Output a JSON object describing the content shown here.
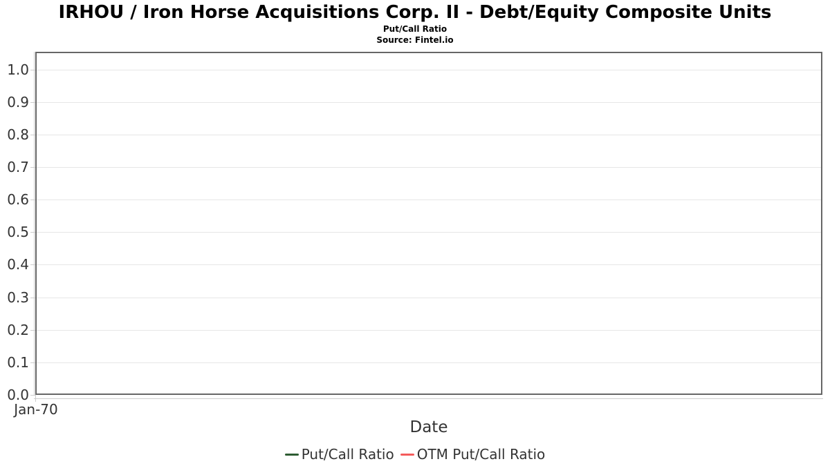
{
  "chart_data": {
    "type": "line",
    "title": "IRHOU / Iron Horse Acquisitions Corp. II - Debt/Equity Composite Units",
    "subtitle": "Put/Call Ratio",
    "source": "Source: Fintel.io",
    "xlabel": "Date",
    "ylabel": "",
    "x_ticks": [
      "Jan-70"
    ],
    "y_ticks": [
      "0.0",
      "0.1",
      "0.2",
      "0.3",
      "0.4",
      "0.5",
      "0.6",
      "0.7",
      "0.8",
      "0.9",
      "1.0"
    ],
    "ylim": [
      0.0,
      1.055
    ],
    "grid": true,
    "legend_position": "bottom",
    "series": [
      {
        "name": "Put/Call Ratio",
        "color": "#2d5c32",
        "x": [],
        "values": []
      },
      {
        "name": "OTM Put/Call Ratio",
        "color": "#f45b5b",
        "x": [],
        "values": []
      }
    ]
  },
  "colors": {
    "plot_border": "#666666",
    "grid_line": "#e6e6e6",
    "axis_line": "#cccccc",
    "axis_text": "#333333",
    "title_text": "#000000",
    "series_put_call": "#2d5c32",
    "series_otm_put_call": "#f45b5b"
  }
}
